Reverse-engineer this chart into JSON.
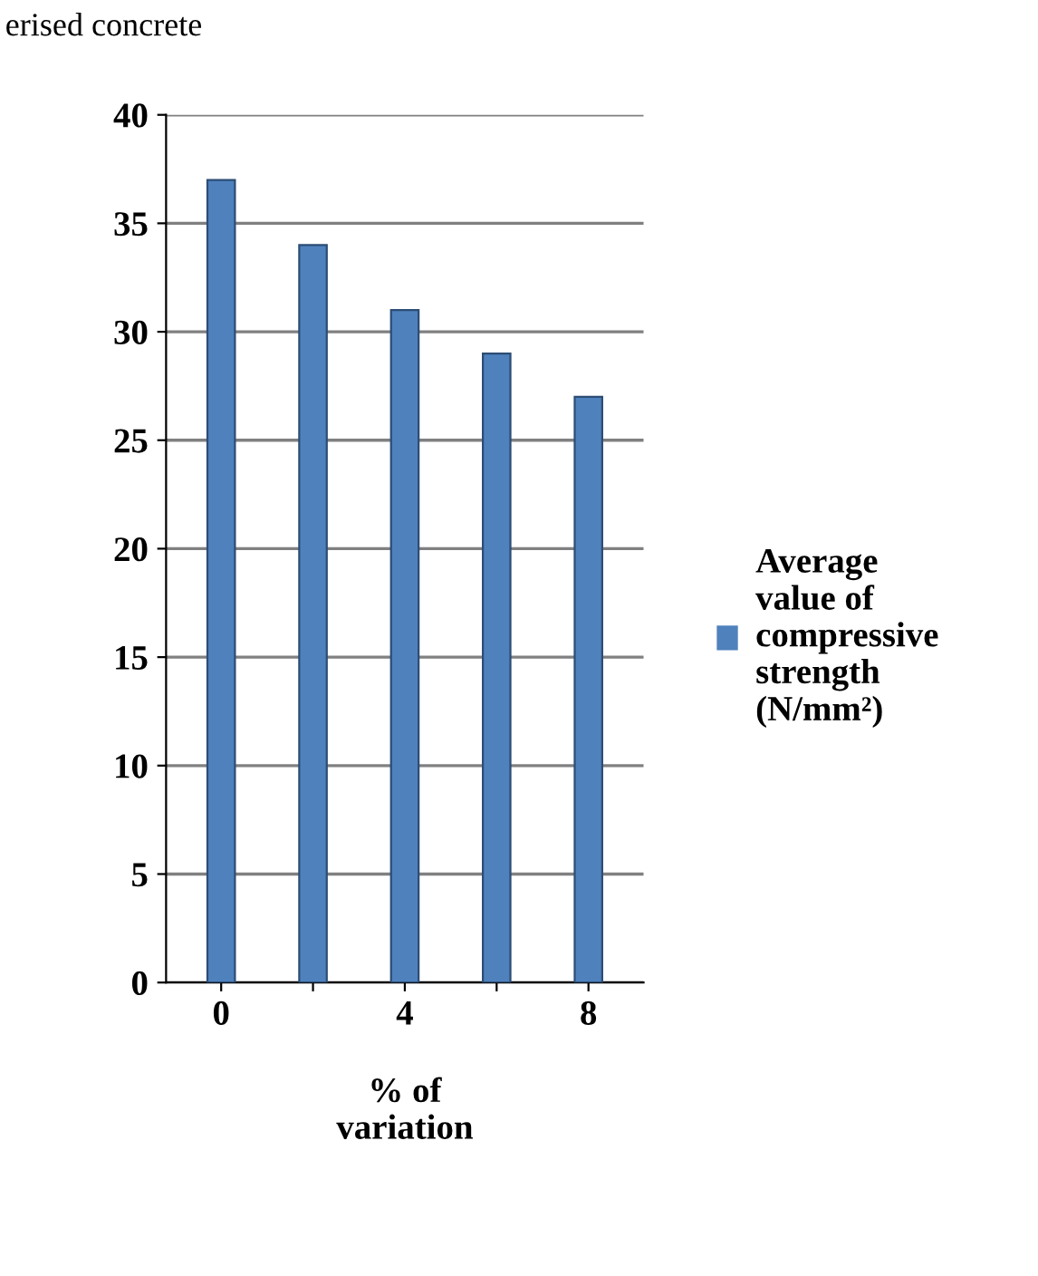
{
  "chart_data": {
    "type": "bar",
    "annotations": [
      "erised concrete"
    ],
    "xlabel": "% of variation",
    "categories": [
      "0",
      null,
      "4",
      null,
      "8"
    ],
    "series": [
      {
        "name": "Average value of compressive strength (N/mm²)",
        "color": "#4f81bd",
        "values": [
          37,
          34,
          31,
          29,
          27
        ]
      }
    ],
    "ylim": [
      0,
      40
    ],
    "yticks": [
      0,
      5,
      10,
      15,
      20,
      25,
      30,
      35,
      40
    ],
    "grid": "y",
    "legend": "right"
  }
}
